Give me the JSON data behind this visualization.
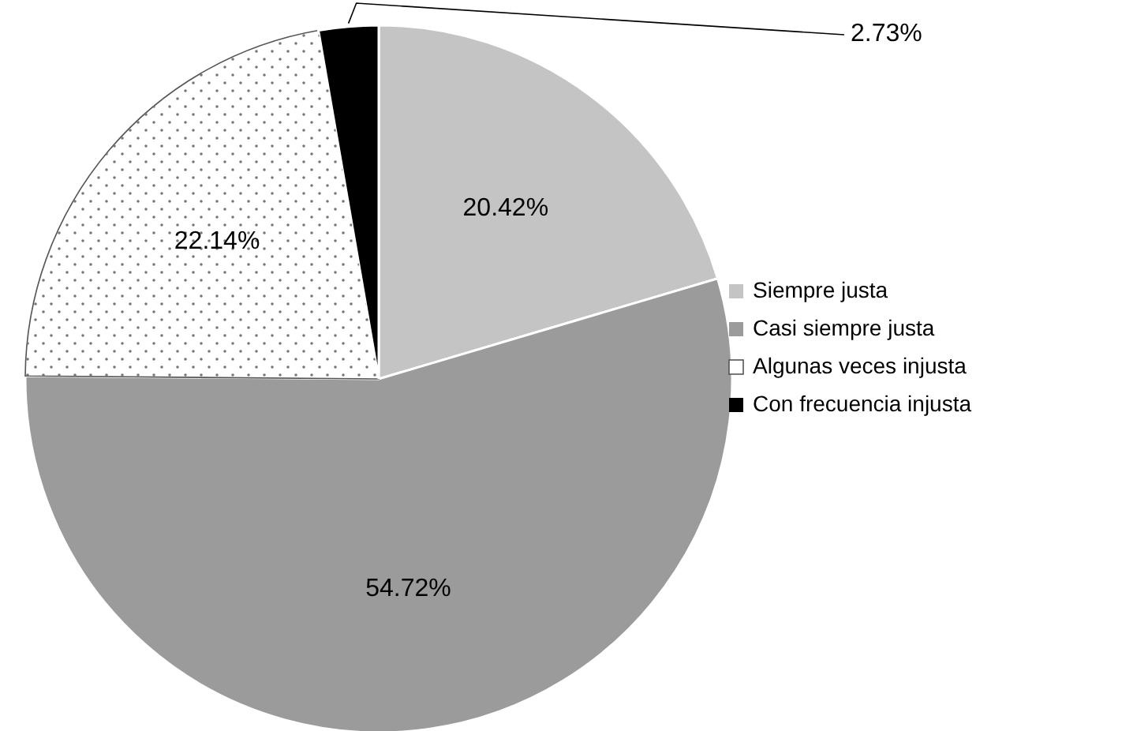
{
  "chart_data": {
    "type": "pie",
    "categories": [
      "Siempre justa",
      "Casi siempre justa",
      "Algunas veces injusta",
      "Con frecuencia injusta"
    ],
    "values": [
      20.42,
      54.72,
      22.14,
      2.73
    ],
    "value_labels": [
      "20.42%",
      "54.72%",
      "22.14%",
      "2.73%"
    ],
    "colors": [
      "#c4c4c4",
      "#9b9b9b",
      "#ffffff",
      "#000000"
    ],
    "legend": "right"
  }
}
